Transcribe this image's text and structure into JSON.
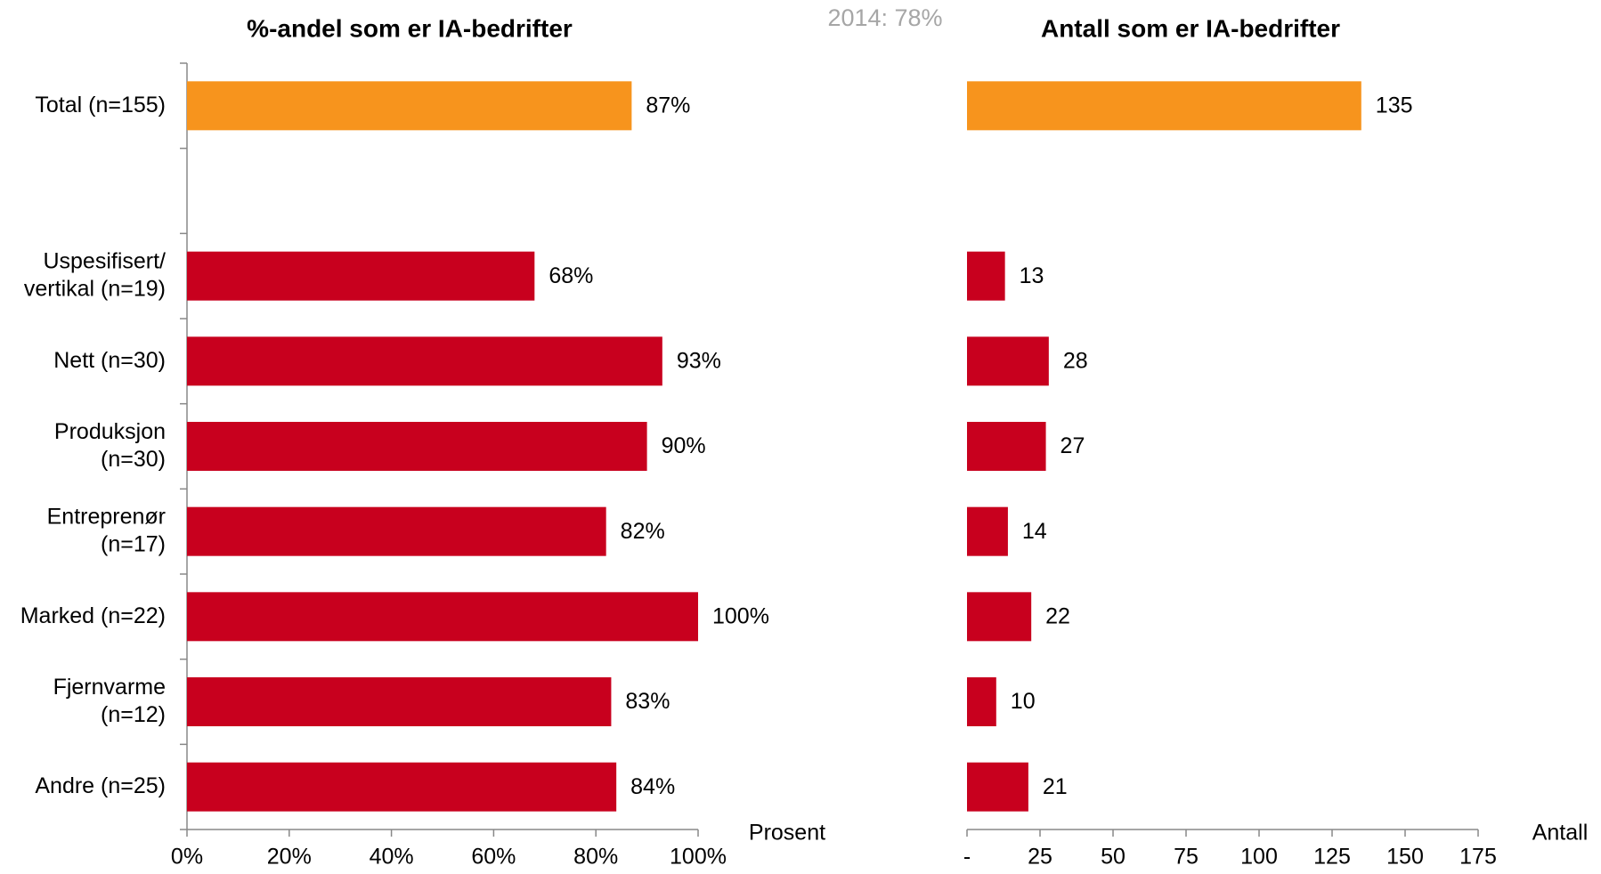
{
  "chart_data": [
    {
      "type": "bar",
      "orientation": "horizontal",
      "title": "%-andel som er IA-bedrifter",
      "annotation": "2014: 78%",
      "xlabel": "Prosent",
      "categories": [
        "Total (n=155)",
        null,
        "Uspesifisert/\nvertikal (n=19)",
        "Nett (n=30)",
        "Produksjon\n(n=30)",
        "Entreprenør\n(n=17)",
        "Marked (n=22)",
        "Fjernvarme\n(n=12)",
        "Andre (n=25)"
      ],
      "values": [
        87,
        null,
        68,
        93,
        90,
        82,
        100,
        83,
        84
      ],
      "value_labels": [
        "87%",
        null,
        "68%",
        "93%",
        "90%",
        "82%",
        "100%",
        "83%",
        "84%"
      ],
      "colors": [
        "#f7941d",
        null,
        "#c8001e",
        "#c8001e",
        "#c8001e",
        "#c8001e",
        "#c8001e",
        "#c8001e",
        "#c8001e"
      ],
      "xlim": [
        0,
        100
      ],
      "xticks": [
        {
          "value": 0,
          "label": "0%"
        },
        {
          "value": 20,
          "label": "20%"
        },
        {
          "value": 40,
          "label": "40%"
        },
        {
          "value": 60,
          "label": "60%"
        },
        {
          "value": 80,
          "label": "80%"
        },
        {
          "value": 100,
          "label": "100%"
        }
      ]
    },
    {
      "type": "bar",
      "orientation": "horizontal",
      "title": "Antall som er IA-bedrifter",
      "xlabel": "Antall",
      "values": [
        135,
        null,
        13,
        28,
        27,
        14,
        22,
        10,
        21
      ],
      "colors": [
        "#f7941d",
        null,
        "#c8001e",
        "#c8001e",
        "#c8001e",
        "#c8001e",
        "#c8001e",
        "#c8001e",
        "#c8001e"
      ],
      "xlim": [
        0,
        175
      ],
      "xticks": [
        {
          "value": 0,
          "label": "-"
        },
        25,
        50,
        75,
        100,
        125,
        150,
        175
      ]
    }
  ]
}
